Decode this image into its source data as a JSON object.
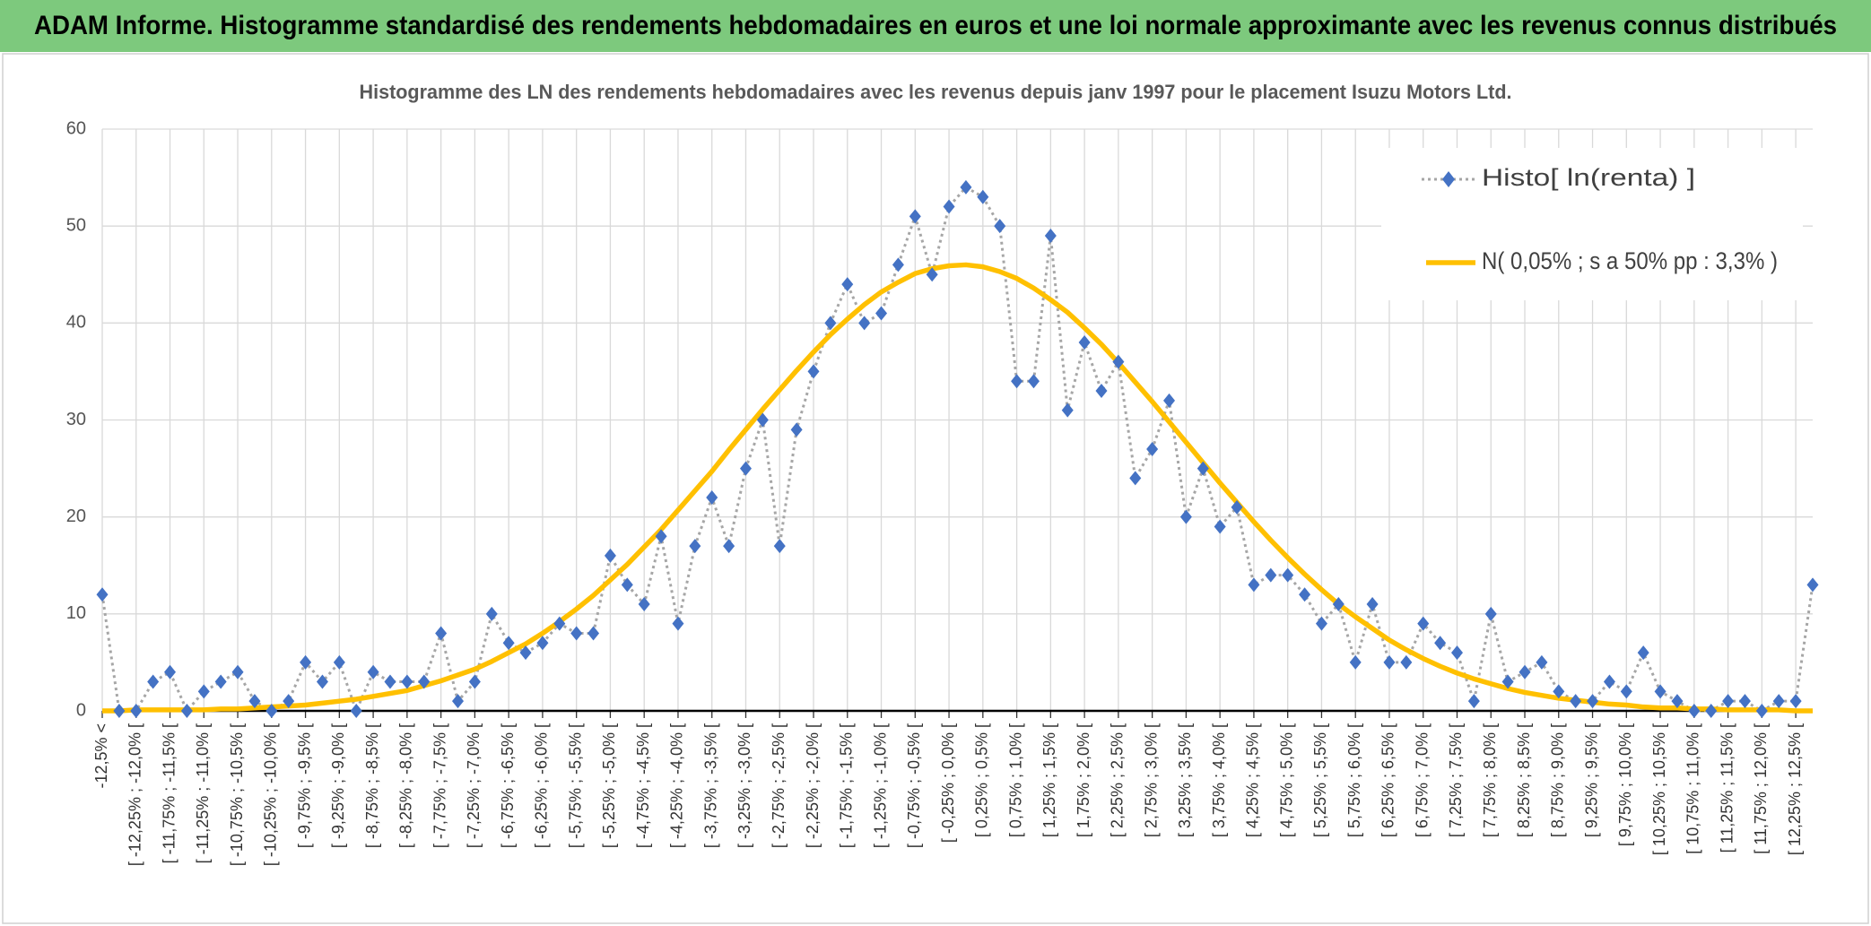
{
  "chart_data": {
    "type": "line",
    "title": "ADAM Informe. Histogramme standardisé des rendements hebdomadaires en euros et une loi normale approximante avec les revenus connus distribués",
    "subtitle": "Histogramme des LN des rendements hebdomadaires avec les revenus depuis janv 1997 pour le placement Isuzu Motors Ltd.",
    "categories": [
      "-12,5% <",
      null,
      "[ -12,25% ; -12,0% [",
      null,
      "[ -11,75% ; -11,5% [",
      null,
      "[ -11,25% ; -11,0% [",
      null,
      "[ -10,75% ; -10,5% [",
      null,
      "[ -10,25% ; -10,0% [",
      null,
      "[ -9,75% ; -9,5% [",
      null,
      "[ -9,25% ; -9,0% [",
      null,
      "[ -8,75% ; -8,5% [",
      null,
      "[ -8,25% ; -8,0% [",
      null,
      "[ -7,75% ; -7,5% [",
      null,
      "[ -7,25% ; -7,0% [",
      null,
      "[ -6,75% ; -6,5% [",
      null,
      "[ -6,25% ; -6,0% [",
      null,
      "[ -5,75% ; -5,5% [",
      null,
      "[ -5,25% ; -5,0% [",
      null,
      "[ -4,75% ; -4,5% [",
      null,
      "[ -4,25% ; -4,0% [",
      null,
      "[ -3,75% ; -3,5% [",
      null,
      "[ -3,25% ; -3,0% [",
      null,
      "[ -2,75% ; -2,5% [",
      null,
      "[ -2,25% ; -2,0% [",
      null,
      "[ -1,75% ; -1,5% [",
      null,
      "[ -1,25% ; -1,0% [",
      null,
      "[ -0,75% ; -0,5% [",
      null,
      "[ -0,25% ; 0,0% [",
      null,
      "[ 0,25% ; 0,5% [",
      null,
      "[ 0,75% ; 1,0% [",
      null,
      "[ 1,25% ; 1,5% [",
      null,
      "[ 1,75% ; 2,0% [",
      null,
      "[ 2,25% ; 2,5% [",
      null,
      "[ 2,75% ; 3,0% [",
      null,
      "[ 3,25% ; 3,5% [",
      null,
      "[ 3,75% ; 4,0% [",
      null,
      "[ 4,25% ; 4,5% [",
      null,
      "[ 4,75% ; 5,0% [",
      null,
      "[ 5,25% ; 5,5% [",
      null,
      "[ 5,75% ; 6,0% [",
      null,
      "[ 6,25% ; 6,5% [",
      null,
      "[ 6,75% ; 7,0% [",
      null,
      "[ 7,25% ; 7,5% [",
      null,
      "[ 7,75% ; 8,0% [",
      null,
      "[ 8,25% ; 8,5% [",
      null,
      "[ 8,75% ; 9,0% [",
      null,
      "[ 9,25% ; 9,5% [",
      null,
      "[ 9,75% ; 10,0% [",
      null,
      "[ 10,25% ; 10,5% [",
      null,
      "[ 10,75% ; 11,0% [",
      null,
      "[ 11,25% ; 11,5% [",
      null,
      "[ 11,75% ; 12,0% [",
      null,
      "[ 12,25% ; 12,5% [",
      null
    ],
    "series": [
      {
        "name": "Histo[ ln(renta) ]",
        "color": "#4472c4",
        "line_color": "#a6a6a6",
        "values": [
          12,
          0,
          0,
          3,
          4,
          0,
          2,
          3,
          4,
          1,
          0,
          1,
          5,
          3,
          5,
          0,
          4,
          3,
          3,
          3,
          8,
          1,
          3,
          10,
          7,
          6,
          7,
          9,
          8,
          8,
          16,
          13,
          11,
          18,
          9,
          17,
          22,
          17,
          25,
          30,
          17,
          29,
          35,
          40,
          44,
          40,
          41,
          46,
          51,
          45,
          52,
          54,
          53,
          50,
          34,
          34,
          49,
          31,
          38,
          33,
          36,
          24,
          27,
          32,
          20,
          25,
          19,
          21,
          13,
          14,
          14,
          12,
          9,
          11,
          5,
          11,
          5,
          5,
          9,
          7,
          6,
          1,
          10,
          3,
          4,
          5,
          2,
          1,
          1,
          3,
          2,
          6,
          2,
          1,
          0,
          0,
          1,
          1,
          0,
          1,
          1,
          13
        ]
      },
      {
        "name": "N( 0,05% ; s a 50% pp : 3,3% )",
        "color": "#ffc000",
        "values": [
          0.0,
          0.0,
          0.1,
          0.1,
          0.1,
          0.1,
          0.1,
          0.2,
          0.2,
          0.3,
          0.4,
          0.5,
          0.6,
          0.8,
          1.0,
          1.2,
          1.5,
          1.8,
          2.1,
          2.6,
          3.1,
          3.7,
          4.3,
          5.1,
          6.0,
          6.9,
          8.0,
          9.2,
          10.5,
          11.9,
          13.5,
          15.1,
          16.9,
          18.7,
          20.7,
          22.7,
          24.7,
          26.9,
          29.0,
          31.1,
          33.1,
          35.1,
          37.0,
          38.8,
          40.4,
          41.9,
          43.2,
          44.2,
          45.1,
          45.6,
          45.9,
          46.0,
          45.8,
          45.3,
          44.6,
          43.6,
          42.4,
          41.1,
          39.5,
          37.8,
          35.9,
          33.9,
          31.9,
          29.8,
          27.7,
          25.6,
          23.5,
          21.5,
          19.5,
          17.6,
          15.8,
          14.1,
          12.5,
          11.0,
          9.7,
          8.5,
          7.3,
          6.3,
          5.4,
          4.6,
          3.9,
          3.3,
          2.8,
          2.3,
          1.9,
          1.6,
          1.3,
          1.1,
          0.9,
          0.7,
          0.6,
          0.4,
          0.3,
          0.3,
          0.2,
          0.2,
          0.1,
          0.1,
          0.1,
          0.1,
          0.0,
          0.0
        ]
      }
    ],
    "ylim": [
      0,
      60
    ],
    "yticks": [
      0,
      10,
      20,
      30,
      40,
      50,
      60
    ],
    "grid": true,
    "legend": "upper right"
  }
}
